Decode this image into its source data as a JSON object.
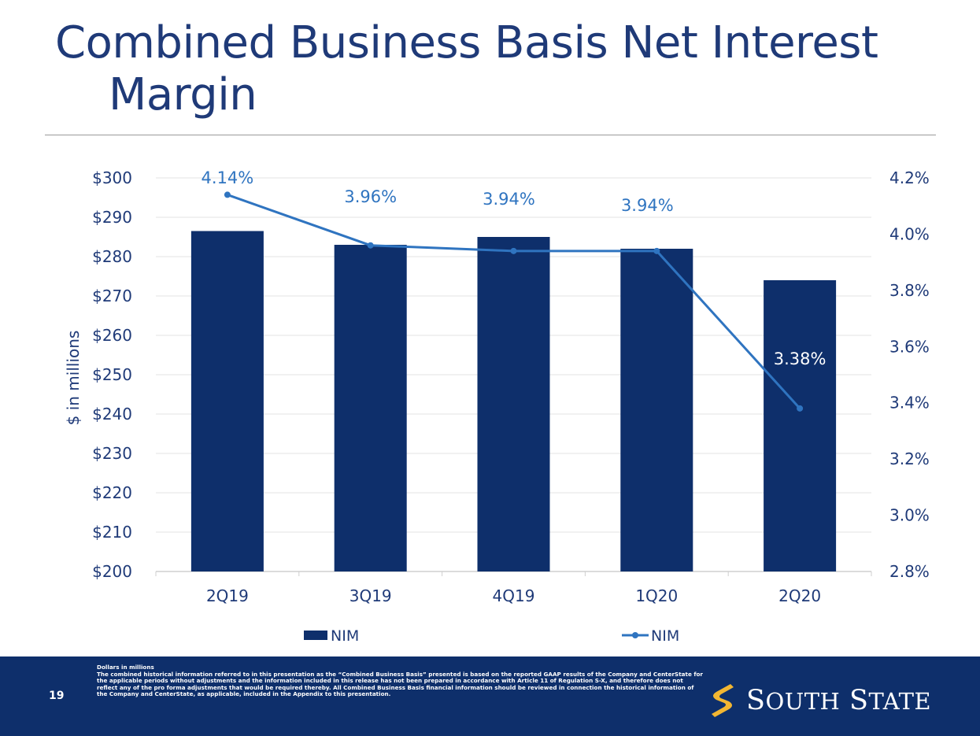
{
  "title_line1": "Combined Business Basis Net Interest",
  "title_line2": "Margin",
  "chart_data": {
    "type": "bar",
    "categories": [
      "2Q19",
      "3Q19",
      "4Q19",
      "1Q20",
      "2Q20"
    ],
    "series": [
      {
        "name": "NIM",
        "kind": "bar",
        "axis": "left",
        "values": [
          286.5,
          283,
          285,
          282,
          274
        ]
      },
      {
        "name": "NIM",
        "kind": "line",
        "axis": "right",
        "values": [
          4.14,
          3.96,
          3.94,
          3.94,
          3.38
        ],
        "labels": [
          "4.14%",
          "3.96%",
          "3.94%",
          "3.94%",
          "3.38%"
        ]
      }
    ],
    "ylabel": "$ in millions",
    "ylim": [
      200,
      300
    ],
    "y_ticks": [
      "$300",
      "$290",
      "$280",
      "$270",
      "$260",
      "$250",
      "$240",
      "$230",
      "$220",
      "$210",
      "$200"
    ],
    "y2lim": [
      2.8,
      4.2
    ],
    "y2_ticks": [
      "4.2%",
      "4.0%",
      "3.8%",
      "3.6%",
      "3.4%",
      "3.2%",
      "3.0%",
      "2.8%"
    ],
    "grid": true,
    "legend_placement": "bottom",
    "colors": {
      "bar": "#0e2f6b",
      "line": "#2f74c0",
      "axis_text": "#1f3a78"
    }
  },
  "footer": {
    "page_number": "19",
    "notes_heading": "Dollars in millions",
    "notes_body": "The combined historical information referred to in this presentation as the “Combined Business Basis” presented is based on the reported GAAP results of the Company and CenterState for the applicable periods without adjustments and the information included in this release has not been prepared in accordance with Article 11 of Regulation S-X, and therefore does not reflect any of the pro forma adjustments that would be required thereby.  All Combined Business Basis financial information should be reviewed in connection the historical information of the Company and CenterState, as applicable, included in the Appendix to this presentation.",
    "logo_text_big1": "S",
    "logo_text_small1": "OUTH",
    "logo_text_big2": "S",
    "logo_text_small2": "TATE",
    "colors": {
      "background": "#0e2f6b",
      "logo_mark": "#f2b632"
    }
  }
}
